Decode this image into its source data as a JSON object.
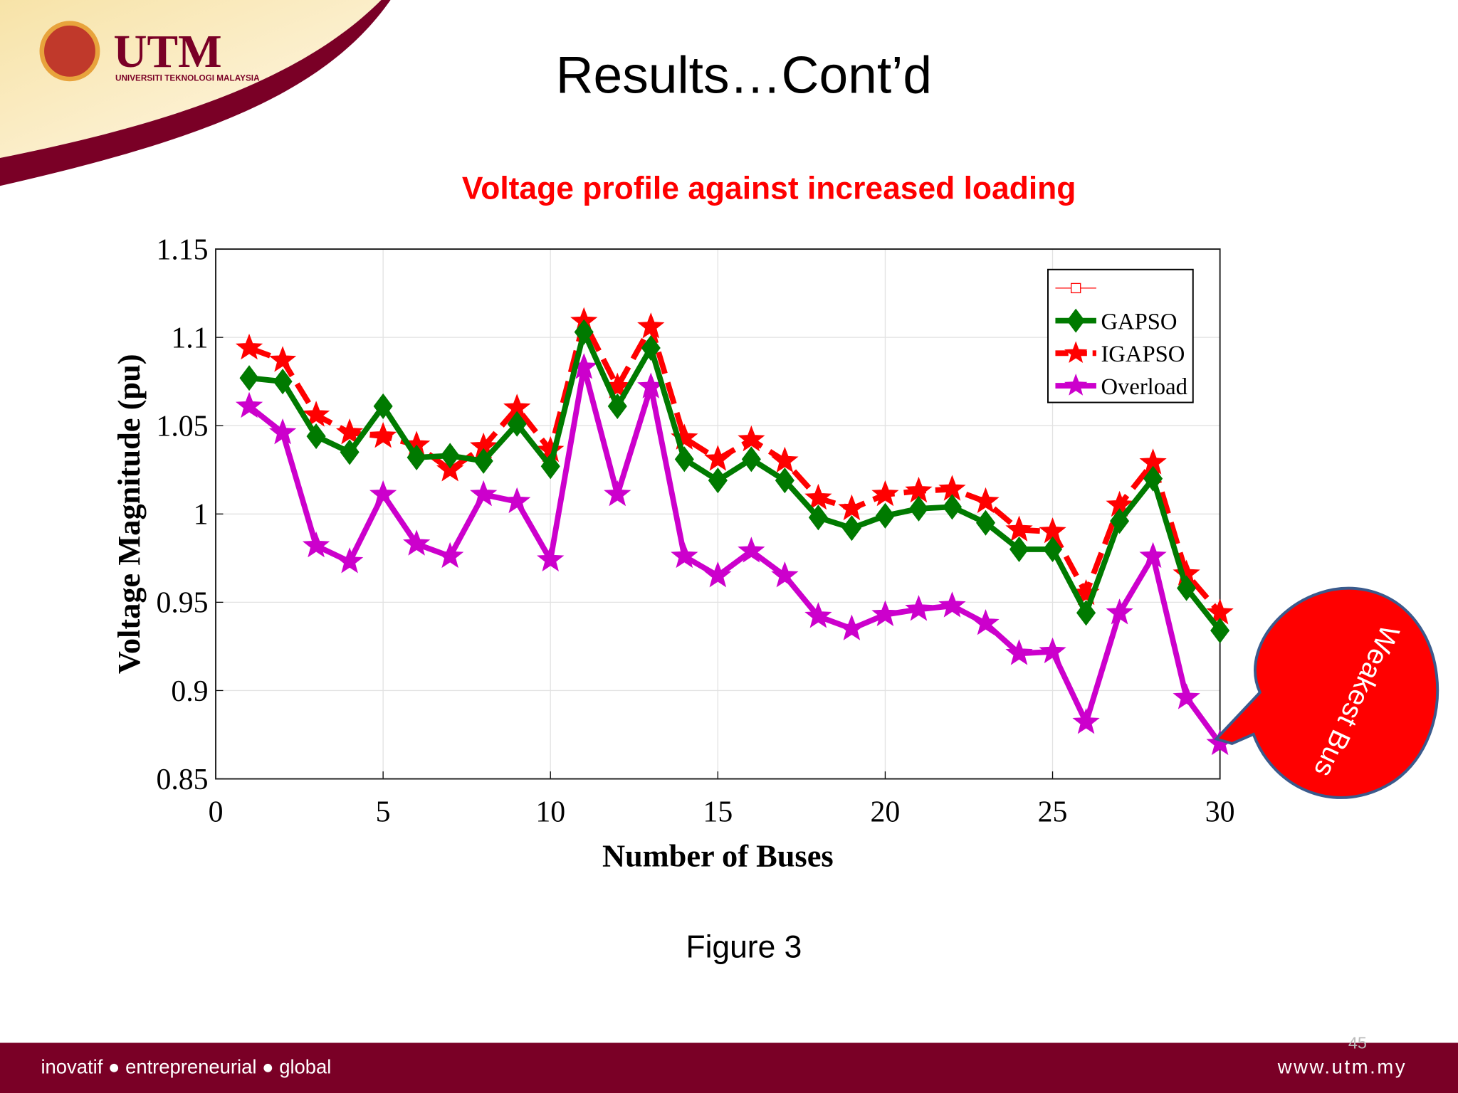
{
  "header": {
    "logo": "UTM",
    "university": "UNIVERSITI TEKNOLOGI MALAYSIA",
    "title": "Results…Cont’d"
  },
  "chart_data": {
    "type": "line",
    "title": "Voltage profile against increased loading",
    "xlabel": "Number of Buses",
    "ylabel": "Voltage Magnitude (pu)",
    "x": [
      1,
      2,
      3,
      4,
      5,
      6,
      7,
      8,
      9,
      10,
      11,
      12,
      13,
      14,
      15,
      16,
      17,
      18,
      19,
      20,
      21,
      22,
      23,
      24,
      25,
      26,
      27,
      28,
      29,
      30
    ],
    "series": [
      {
        "name": "GAPSO",
        "color": "#007a00",
        "marker": "diamond",
        "dash": "solid",
        "values": [
          1.077,
          1.075,
          1.044,
          1.035,
          1.061,
          1.032,
          1.033,
          1.03,
          1.051,
          1.027,
          1.103,
          1.061,
          1.094,
          1.031,
          1.019,
          1.031,
          1.019,
          0.998,
          0.992,
          0.999,
          1.003,
          1.004,
          0.995,
          0.98,
          0.98,
          0.944,
          0.996,
          1.02,
          0.958,
          0.934
        ]
      },
      {
        "name": "IGAPSO",
        "color": "#ff0000",
        "marker": "star",
        "dash": "dashed",
        "values": [
          1.094,
          1.087,
          1.056,
          1.046,
          1.044,
          1.039,
          1.025,
          1.038,
          1.06,
          1.036,
          1.109,
          1.072,
          1.106,
          1.043,
          1.031,
          1.042,
          1.03,
          1.009,
          1.003,
          1.011,
          1.013,
          1.014,
          1.007,
          0.991,
          0.99,
          0.955,
          1.005,
          1.029,
          0.966,
          0.944
        ]
      },
      {
        "name": "Overload",
        "color": "#cc00cc",
        "marker": "star",
        "dash": "solid",
        "values": [
          1.061,
          1.046,
          0.982,
          0.973,
          1.011,
          0.983,
          0.976,
          1.011,
          1.007,
          0.974,
          1.083,
          1.011,
          1.072,
          0.976,
          0.965,
          0.979,
          0.965,
          0.942,
          0.935,
          0.943,
          0.946,
          0.948,
          0.938,
          0.921,
          0.922,
          0.882,
          0.944,
          0.976,
          0.896,
          0.87
        ]
      }
    ],
    "xlim": [
      0,
      30
    ],
    "xticks": [
      0,
      5,
      10,
      15,
      20,
      25,
      30
    ],
    "ylim": [
      0.85,
      1.15
    ],
    "yticks": [
      0.85,
      0.9,
      0.95,
      1,
      1.05,
      1.1,
      1.15
    ],
    "grid": true,
    "legend": "upper right",
    "annotation": "Weakest Bus",
    "caption": "Figure 3"
  },
  "footer": {
    "slogan": "inovatif ● entrepreneurial ● global",
    "url": "www.utm.my",
    "page": "45"
  }
}
